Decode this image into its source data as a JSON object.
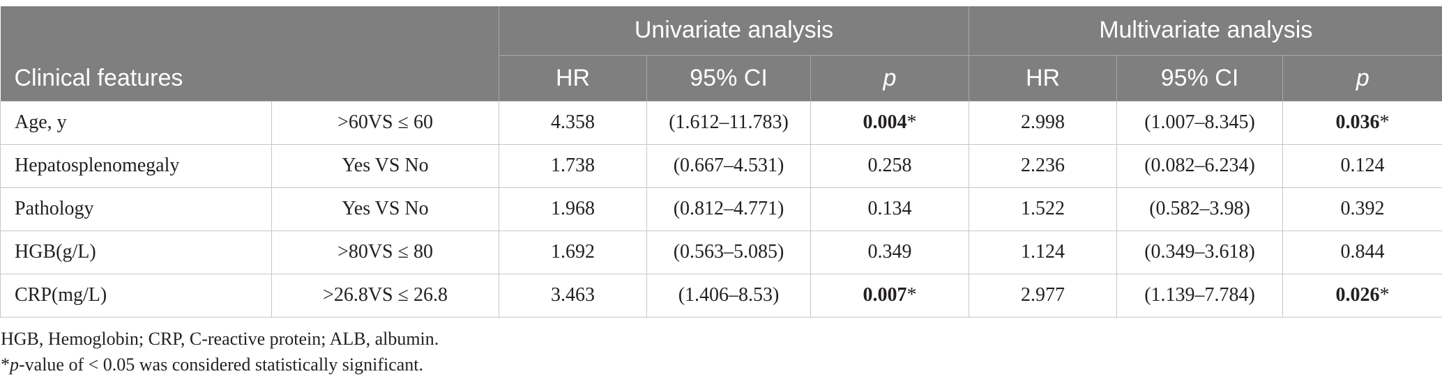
{
  "header": {
    "clinical_features": "Clinical features",
    "univariate": "Univariate analysis",
    "multivariate": "Multivariate analysis",
    "uni_hr": "HR",
    "uni_ci": "95% CI",
    "uni_p": "p",
    "multi_hr": "HR",
    "multi_ci": "95% CI",
    "multi_p": "p"
  },
  "rows": [
    {
      "feature": "Age, y",
      "comparison": ">60VS ≤ 60",
      "uni_hr": "4.358",
      "uni_ci": "(1.612–11.783)",
      "uni_p": "0.004",
      "uni_p_mark": "*",
      "multi_hr": "2.998",
      "multi_ci": "(1.007–8.345)",
      "multi_p": "0.036",
      "multi_p_mark": "*"
    },
    {
      "feature": "Hepatosplenomegaly",
      "comparison": "Yes VS No",
      "uni_hr": "1.738",
      "uni_ci": "(0.667–4.531)",
      "uni_p": "0.258",
      "multi_hr": "2.236",
      "multi_ci": "(0.082–6.234)",
      "multi_p": "0.124"
    },
    {
      "feature": "Pathology",
      "comparison": "Yes VS No",
      "uni_hr": "1.968",
      "uni_ci": "(0.812–4.771)",
      "uni_p": "0.134",
      "multi_hr": "1.522",
      "multi_ci": "(0.582–3.98)",
      "multi_p": "0.392"
    },
    {
      "feature": "HGB(g/L)",
      "comparison": ">80VS ≤ 80",
      "uni_hr": "1.692",
      "uni_ci": "(0.563–5.085)",
      "uni_p": "0.349",
      "multi_hr": "1.124",
      "multi_ci": "(0.349–3.618)",
      "multi_p": "0.844"
    },
    {
      "feature": "CRP(mg/L)",
      "comparison": ">26.8VS ≤ 26.8",
      "uni_hr": "3.463",
      "uni_ci": "(1.406–8.53)",
      "uni_p": "0.007",
      "uni_p_mark": "*",
      "multi_hr": "2.977",
      "multi_ci": "(1.139–7.784)",
      "multi_p": "0.026",
      "multi_p_mark": "*"
    }
  ],
  "footnotes": {
    "abbreviations": "HGB, Hemoglobin; CRP, C-reactive protein; ALB, albumin.",
    "significance_star": "*",
    "significance_italic": "p",
    "significance_text": "-value of < 0.05 was considered statistically significant."
  },
  "colors": {
    "header_bg": "#7f7f7f",
    "header_text": "#ffffff",
    "grid_line": "#c6c6c6",
    "body_text": "#231f20"
  }
}
